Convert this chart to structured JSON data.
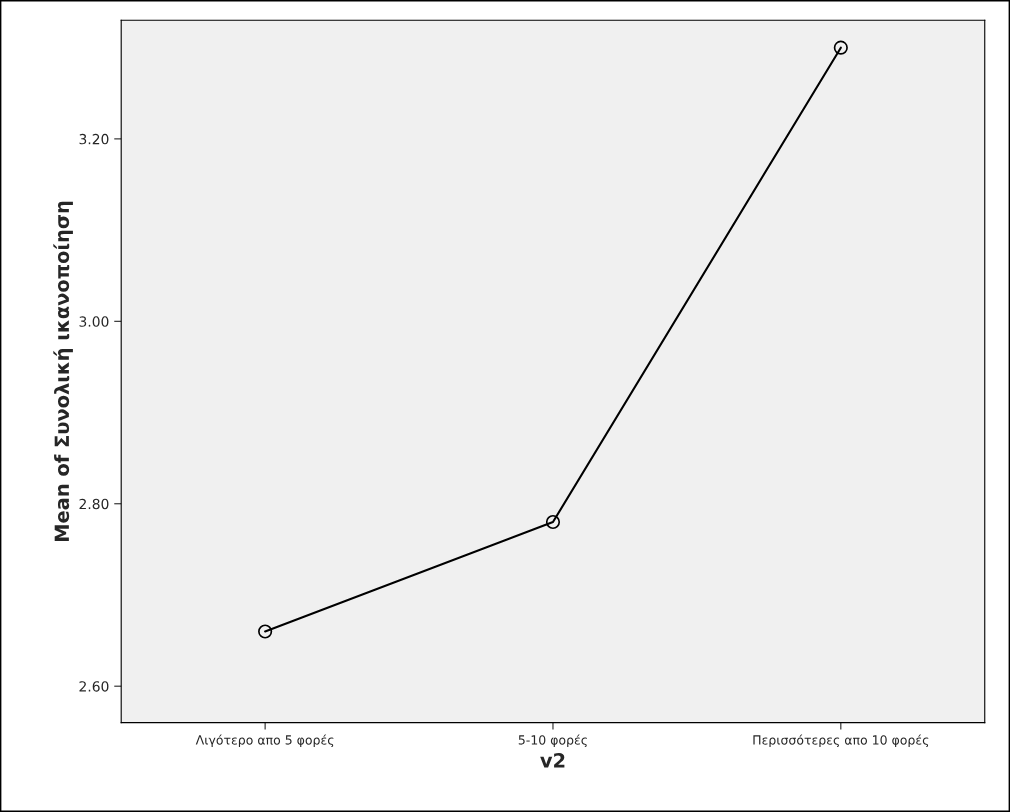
{
  "chart_data": {
    "type": "line",
    "xlabel": "v2",
    "ylabel": "Mean of Συνολική ικανοποίηση",
    "categories": [
      "Λιγότερο απο 5 φορές",
      "5-10 φορές",
      "Περισσότερες απο 10 φορές"
    ],
    "series": [
      {
        "color": "#000000",
        "values": [
          2.66,
          2.78,
          3.3
        ]
      }
    ],
    "ylim": [
      2.56,
      3.33
    ],
    "yticks": [
      {
        "value": 2.6,
        "label": "2.60"
      },
      {
        "value": 2.8,
        "label": "2.80"
      },
      {
        "value": 3.0,
        "label": "3.00"
      },
      {
        "value": 3.2,
        "label": "3.20"
      }
    ],
    "grid": false,
    "legend": false,
    "marker": "circle",
    "line_style": "solid"
  }
}
